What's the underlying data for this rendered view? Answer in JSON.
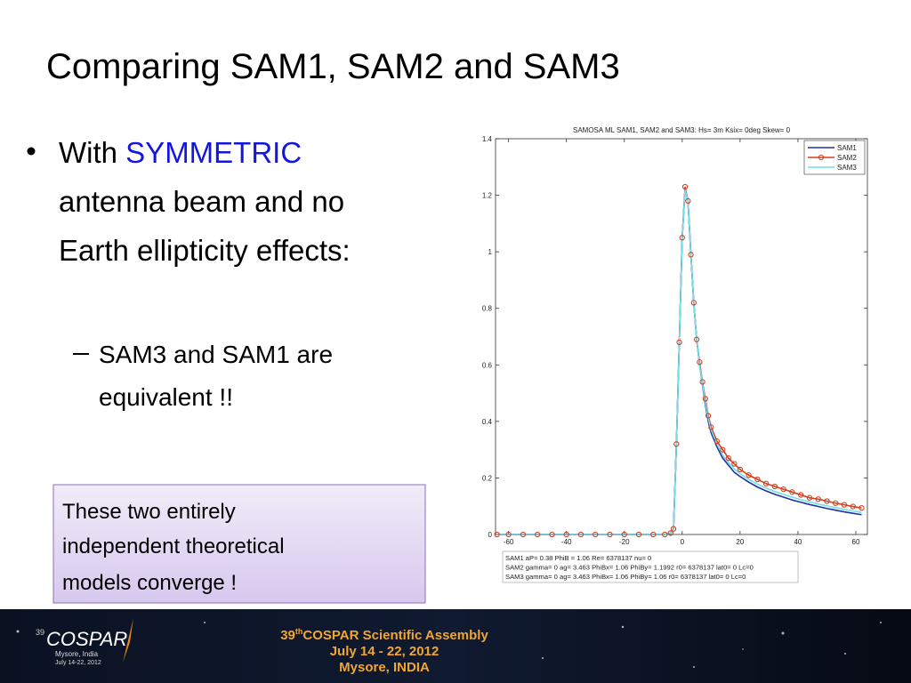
{
  "title": "Comparing SAM1, SAM2 and SAM3",
  "bullet": {
    "lead": "With",
    "highlight": "SYMMETRIC",
    "lines": [
      "antenna beam and no",
      "Earth ellipticity effects:"
    ]
  },
  "sub_bullet": [
    "SAM3 and SAM1 are",
    "equivalent !!"
  ],
  "callout": [
    "These two entirely",
    "independent theoretical",
    "models converge !"
  ],
  "footer": {
    "logo": "COSPAR",
    "logo_number": "39",
    "logo_place": "Mysore, India",
    "logo_dates": "July 14-22, 2012",
    "assembly_number": "39",
    "assembly_suffix": "th",
    "assembly": "COSPAR Scientific Assembly",
    "dates": "July 14 - 22, 2012",
    "location": "Mysore, INDIA"
  },
  "chart_data": {
    "type": "line",
    "title": "SAMOSA ML SAM1, SAM2 and SAM3: Hs= 3m Ksix= 0deg Skew= 0",
    "x": [
      -64,
      -60,
      -55,
      -50,
      -45,
      -40,
      -35,
      -30,
      -25,
      -20,
      -15,
      -10,
      -6,
      -4,
      -3,
      -2,
      -1,
      0,
      1,
      2,
      3,
      4,
      5,
      6,
      7,
      8,
      9,
      10,
      12,
      14,
      16,
      18,
      20,
      23,
      26,
      29,
      32,
      35,
      38,
      41,
      44,
      47,
      50,
      53,
      56,
      59,
      62
    ],
    "series": [
      {
        "name": "SAM1",
        "color": "#1f2fa8",
        "marker": false,
        "values": [
          0,
          0,
          0,
          0,
          0,
          0,
          0,
          0,
          0,
          0,
          0,
          0,
          0,
          0.005,
          0.02,
          0.32,
          0.68,
          1.05,
          1.22,
          1.18,
          0.99,
          0.82,
          0.69,
          0.6,
          0.53,
          0.46,
          0.4,
          0.36,
          0.31,
          0.27,
          0.245,
          0.22,
          0.205,
          0.185,
          0.168,
          0.154,
          0.142,
          0.132,
          0.122,
          0.114,
          0.106,
          0.099,
          0.092,
          0.086,
          0.08,
          0.075,
          0.07
        ]
      },
      {
        "name": "SAM2",
        "color": "#d2401e",
        "marker": true,
        "values": [
          0,
          0,
          0,
          0,
          0,
          0,
          0,
          0,
          0,
          0,
          0,
          0,
          0,
          0.005,
          0.02,
          0.32,
          0.68,
          1.05,
          1.23,
          1.18,
          0.99,
          0.82,
          0.69,
          0.61,
          0.54,
          0.48,
          0.42,
          0.38,
          0.33,
          0.3,
          0.27,
          0.25,
          0.23,
          0.21,
          0.195,
          0.18,
          0.17,
          0.16,
          0.15,
          0.14,
          0.13,
          0.125,
          0.118,
          0.111,
          0.105,
          0.099,
          0.094
        ]
      },
      {
        "name": "SAM3",
        "color": "#6fe0e8",
        "marker": false,
        "values": [
          0,
          0,
          0,
          0,
          0,
          0,
          0,
          0,
          0,
          0,
          0,
          0,
          0,
          0.005,
          0.02,
          0.32,
          0.68,
          1.05,
          1.22,
          1.18,
          0.99,
          0.82,
          0.69,
          0.6,
          0.535,
          0.47,
          0.41,
          0.37,
          0.32,
          0.28,
          0.255,
          0.232,
          0.215,
          0.195,
          0.178,
          0.164,
          0.152,
          0.142,
          0.132,
          0.123,
          0.115,
          0.108,
          0.101,
          0.095,
          0.089,
          0.083,
          0.078
        ]
      }
    ],
    "xlim": [
      -64.5,
      64
    ],
    "ylim": [
      0,
      1.4
    ],
    "xticks": [
      -60,
      -40,
      -20,
      0,
      20,
      40,
      60
    ],
    "yticks": [
      0,
      0.2,
      0.4,
      0.6,
      0.8,
      1,
      1.2,
      1.4
    ],
    "grid": false,
    "legend": "upper right",
    "annotations": [
      "SAM1 aP= 0.38 PhiB = 1.06 Re= 6378137 nu= 0",
      "SAM2 gamma= 0 ag= 3.463 PhiBx= 1.06 PhiBy= 1.1992 r0= 6378137 lat0= 0 Lc=0",
      "SAM3 gamma= 0 ag= 3.463 PhiBx= 1.06 PhiBy= 1.06 r0= 6378137 lat0= 0 Lc=0"
    ]
  }
}
